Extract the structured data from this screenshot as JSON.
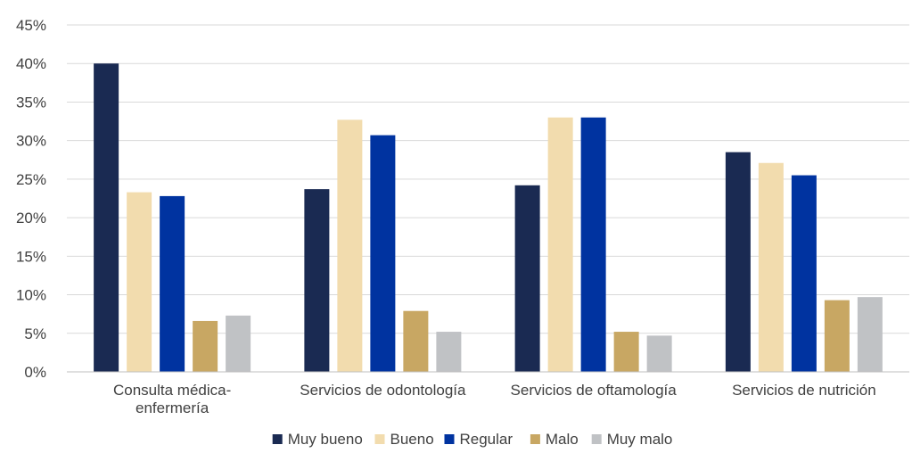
{
  "chart_data": {
    "type": "bar",
    "categories": [
      [
        "Consulta médica-",
        "enfermería"
      ],
      [
        "Servicios de odontología"
      ],
      [
        "Servicios de oftamología"
      ],
      [
        "Servicios de nutrición"
      ]
    ],
    "series": [
      {
        "name": "Muy bueno",
        "color": "#1a2a52",
        "values": [
          40.0,
          23.7,
          24.2,
          28.5
        ]
      },
      {
        "name": "Bueno",
        "color": "#f2dcae",
        "values": [
          23.3,
          32.7,
          33.0,
          27.1
        ]
      },
      {
        "name": "Regular",
        "color": "#0033a0",
        "values": [
          22.8,
          30.7,
          33.0,
          25.5
        ]
      },
      {
        "name": "Malo",
        "color": "#c8a763",
        "values": [
          6.6,
          7.9,
          5.2,
          9.3
        ]
      },
      {
        "name": "Muy malo",
        "color": "#c0c2c5",
        "values": [
          7.3,
          5.2,
          4.7,
          9.7
        ]
      }
    ],
    "y_ticks": [
      "0%",
      "5%",
      "10%",
      "15%",
      "20%",
      "25%",
      "30%",
      "35%",
      "40%",
      "45%"
    ],
    "ylim": [
      0,
      45
    ],
    "grid": true,
    "legend_position": "bottom"
  }
}
